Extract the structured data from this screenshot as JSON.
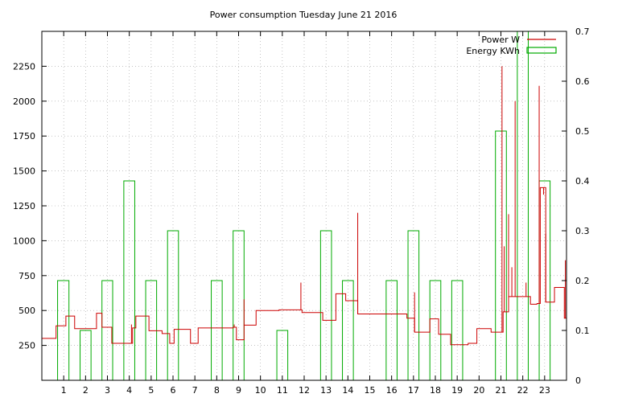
{
  "chart_data": {
    "type": "line",
    "title": "Power consumption Tuesday June 21 2016",
    "xlabel": "",
    "ylabel": "",
    "y2label": "",
    "xlim": [
      0,
      24
    ],
    "ylim": [
      0,
      2500
    ],
    "y2lim": [
      0,
      0.7
    ],
    "x_ticks": [
      1,
      2,
      3,
      4,
      5,
      6,
      7,
      8,
      9,
      10,
      11,
      12,
      13,
      14,
      15,
      16,
      17,
      18,
      19,
      20,
      21,
      22,
      23
    ],
    "x_tick_labels": [
      "1",
      "2",
      "3",
      "4",
      "5",
      "6",
      "7",
      "8",
      "9",
      "10",
      "11",
      "12",
      "13",
      "14",
      "15",
      "16",
      "17",
      "18",
      "19",
      "20",
      "21",
      "22",
      "23"
    ],
    "y_ticks": [
      250,
      500,
      750,
      1000,
      1250,
      1500,
      1750,
      2000,
      2250
    ],
    "y_tick_labels": [
      "250",
      "500",
      "750",
      "1000",
      "1250",
      "1500",
      "1750",
      "2000",
      "2250"
    ],
    "y2_ticks": [
      0,
      0.1,
      0.2,
      0.3,
      0.4,
      0.5,
      0.6,
      0.7
    ],
    "y2_tick_labels": [
      "0",
      "0.1",
      "0.2",
      "0.3",
      "0.4",
      "0.5",
      "0.6",
      "0.7"
    ],
    "grid": true,
    "legend_position": "top-right",
    "colors": {
      "power": "#cc0000",
      "energy": "#00aa00"
    },
    "series": [
      {
        "name": "Power W",
        "axis": "left",
        "style": "step-line",
        "x": [
          0,
          0.65,
          1.1,
          1.5,
          2.4,
          2.5,
          2.75,
          3.2,
          3.7,
          4.15,
          4.3,
          4.9,
          5.5,
          5.85,
          6.05,
          6.8,
          7.15,
          8.75,
          8.9,
          9.25,
          9.8,
          10.85,
          11.9,
          12.85,
          13.45,
          13.9,
          14.45,
          15.9,
          16.7,
          17.05,
          17.75,
          18.15,
          18.7,
          19.5,
          19.9,
          20.55,
          21.1,
          21.35,
          21.75,
          22.35,
          22.65,
          22.8,
          23.05,
          23.45,
          23.9
        ],
        "y": [
          300,
          390,
          460,
          370,
          370,
          480,
          380,
          265,
          265,
          375,
          460,
          355,
          335,
          265,
          365,
          265,
          375,
          380,
          290,
          395,
          500,
          505,
          485,
          430,
          620,
          570,
          475,
          475,
          445,
          345,
          440,
          330,
          255,
          265,
          370,
          345,
          490,
          600,
          600,
          545,
          550,
          1380,
          560,
          665,
          445
        ],
        "spikes": [
          {
            "x": 4.1,
            "y": 400
          },
          {
            "x": 8.8,
            "y": 400
          },
          {
            "x": 9.25,
            "y": 580
          },
          {
            "x": 11.85,
            "y": 700
          },
          {
            "x": 14.45,
            "y": 1200
          },
          {
            "x": 17.05,
            "y": 630
          },
          {
            "x": 21.05,
            "y": 2250
          },
          {
            "x": 21.15,
            "y": 960
          },
          {
            "x": 21.35,
            "y": 1190
          },
          {
            "x": 21.5,
            "y": 810
          },
          {
            "x": 21.65,
            "y": 2000
          },
          {
            "x": 22.15,
            "y": 700
          },
          {
            "x": 22.75,
            "y": 2110
          },
          {
            "x": 22.95,
            "y": 1330
          },
          {
            "x": 23.05,
            "y": 1050
          },
          {
            "x": 23.95,
            "y": 860
          }
        ]
      },
      {
        "name": "Energy KWh",
        "axis": "right",
        "style": "bars",
        "bars": [
          {
            "x0": 0.72,
            "x1": 1.24,
            "value": 0.2
          },
          {
            "x0": 1.75,
            "x1": 2.25,
            "value": 0.1
          },
          {
            "x0": 2.75,
            "x1": 3.24,
            "value": 0.2
          },
          {
            "x0": 3.75,
            "x1": 4.25,
            "value": 0.4
          },
          {
            "x0": 4.75,
            "x1": 5.25,
            "value": 0.2
          },
          {
            "x0": 5.75,
            "x1": 6.25,
            "value": 0.3
          },
          {
            "x0": 7.75,
            "x1": 8.25,
            "value": 0.2
          },
          {
            "x0": 8.75,
            "x1": 9.25,
            "value": 0.3
          },
          {
            "x0": 10.75,
            "x1": 11.25,
            "value": 0.1
          },
          {
            "x0": 12.75,
            "x1": 13.25,
            "value": 0.3
          },
          {
            "x0": 13.75,
            "x1": 14.25,
            "value": 0.2
          },
          {
            "x0": 15.75,
            "x1": 16.25,
            "value": 0.2
          },
          {
            "x0": 16.75,
            "x1": 17.25,
            "value": 0.3
          },
          {
            "x0": 17.75,
            "x1": 18.25,
            "value": 0.2
          },
          {
            "x0": 18.75,
            "x1": 19.25,
            "value": 0.2
          },
          {
            "x0": 20.75,
            "x1": 21.25,
            "value": 0.5
          },
          {
            "x0": 21.75,
            "x1": 22.25,
            "value": 0.7
          },
          {
            "x0": 22.75,
            "x1": 23.25,
            "value": 0.4
          }
        ]
      }
    ]
  }
}
